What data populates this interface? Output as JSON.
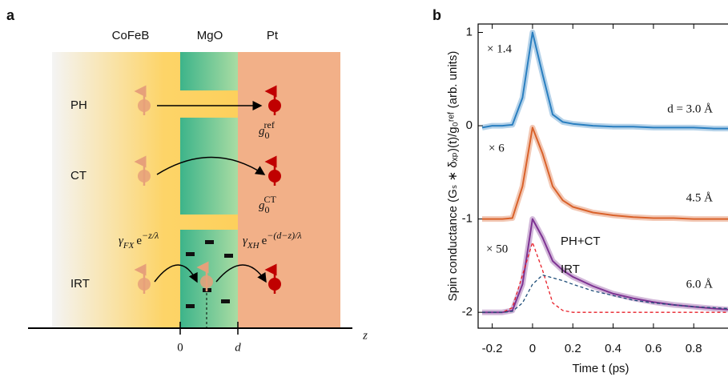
{
  "panel_labels": [
    "a",
    "b"
  ],
  "diagram": {
    "layers": [
      "CoFeB",
      "MgO",
      "Pt"
    ],
    "rows": [
      "PH",
      "CT",
      "IRT"
    ],
    "g_ref": {
      "base": "g",
      "sub": "0",
      "sup": "ref"
    },
    "g_ct": {
      "base": "g",
      "sub": "0",
      "sup": "CT"
    },
    "gamma_fx": {
      "base": "γ",
      "sub": "FX",
      "exp": "e",
      "sup": "−z/λ"
    },
    "gamma_xh": {
      "base": "γ",
      "sub": "XH",
      "exp": "e",
      "sup": "−(d−z)/λ"
    },
    "axis_labels": [
      "0",
      "d",
      "z"
    ]
  },
  "chart_data": {
    "type": "line",
    "xlabel": "Time t (ps)",
    "ylabel": "Spin conductance (Gₛ ∗ δₓₚ)(t)/g₀ʳᵉᶠ  (arb. units)",
    "x": [
      -0.25,
      -0.2,
      -0.15,
      -0.1,
      -0.05,
      0,
      0.05,
      0.1,
      0.15,
      0.2,
      0.3,
      0.4,
      0.5,
      0.6,
      0.7,
      0.8,
      0.9,
      0.97
    ],
    "series": [
      {
        "name": "d = 3.0 Å",
        "color": "#2a7fc0",
        "dash": "solid",
        "values": [
          -0.02,
          0,
          0,
          0.01,
          0.3,
          1.0,
          0.55,
          0.12,
          0.04,
          0.02,
          0,
          -0.01,
          -0.01,
          -0.02,
          -0.02,
          -0.02,
          -0.03,
          -0.03
        ]
      },
      {
        "name": "4.5 Å",
        "color": "#d9622b",
        "dash": "solid",
        "values": [
          -1,
          -1,
          -1,
          -0.99,
          -0.65,
          -0.02,
          -0.3,
          -0.65,
          -0.8,
          -0.87,
          -0.93,
          -0.96,
          -0.98,
          -0.99,
          -0.99,
          -1,
          -1,
          -1
        ]
      },
      {
        "name": "6.0 Å",
        "color": "#7e3393",
        "dash": "solid",
        "values": [
          -2,
          -2,
          -2,
          -1.98,
          -1.7,
          -1.0,
          -1.2,
          -1.45,
          -1.55,
          -1.62,
          -1.72,
          -1.8,
          -1.85,
          -1.89,
          -1.92,
          -1.94,
          -1.96,
          -1.97
        ]
      },
      {
        "name": "PH+CT",
        "color": "#e8202a",
        "dash": "dashed",
        "values": [
          -2,
          -2,
          -2,
          -1.95,
          -1.6,
          -1.25,
          -1.55,
          -1.9,
          -1.98,
          -2,
          -2,
          -2,
          -2,
          -2,
          -2,
          -2,
          -2,
          -2
        ]
      },
      {
        "name": "IRT",
        "color": "#1f4e79",
        "dash": "dashed",
        "values": [
          -2,
          -2,
          -2,
          -1.99,
          -1.9,
          -1.7,
          -1.6,
          -1.63,
          -1.66,
          -1.7,
          -1.77,
          -1.82,
          -1.87,
          -1.9,
          -1.92,
          -1.94,
          -1.95,
          -1.96
        ]
      }
    ],
    "annotations": [
      {
        "text": "× 1.4",
        "color": "#2a7fc0"
      },
      {
        "text": "× 6",
        "color": "#d9622b"
      },
      {
        "text": "× 50",
        "color": "#7e3393"
      }
    ],
    "xlim": [
      -0.27,
      0.97
    ],
    "xticks": [
      -0.2,
      0,
      0.2,
      0.4,
      0.6,
      0.8
    ],
    "ylim": [
      -2.17,
      1.09
    ],
    "yticks": [
      -2,
      -1,
      0,
      1
    ]
  }
}
